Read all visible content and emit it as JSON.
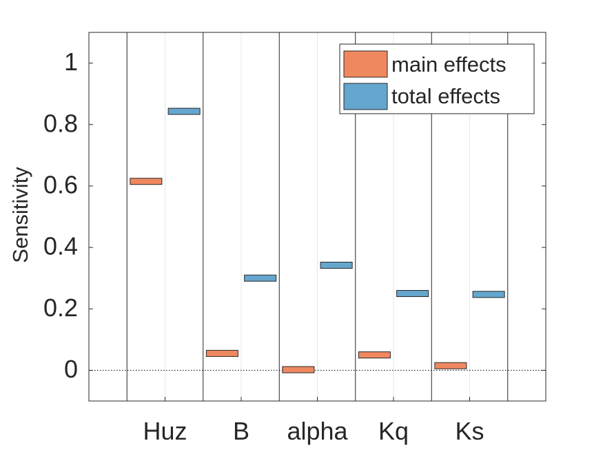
{
  "chart_data": {
    "type": "bar",
    "title": "",
    "xlabel": "",
    "ylabel": "Sensitivity",
    "ylim": [
      -0.1,
      1.1
    ],
    "yticks": [
      0,
      0.2,
      0.4,
      0.6,
      0.8,
      1
    ],
    "ytick_labels": [
      "0",
      "0.2",
      "0.4",
      "0.6",
      "0.8",
      "1"
    ],
    "categories": [
      "Huz",
      "B",
      "alpha",
      "Kq",
      "Ks"
    ],
    "series": [
      {
        "name": "main effects",
        "color": "#F0885F",
        "values": [
          0.615,
          0.055,
          0.002,
          0.05,
          0.015
        ]
      },
      {
        "name": "total effects",
        "color": "#65A6CF",
        "values": [
          0.843,
          0.3,
          0.342,
          0.25,
          0.247
        ]
      }
    ],
    "zero_line": "dotted",
    "grid": "vertical minor lines between series",
    "legend_position": "top-right"
  }
}
